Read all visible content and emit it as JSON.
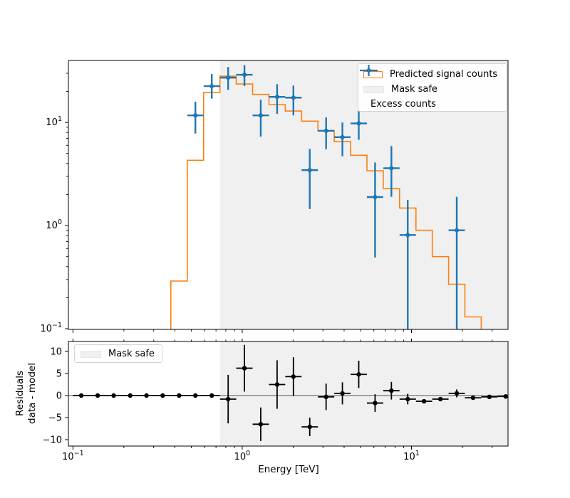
{
  "colors": {
    "model_line": "#ff7f0e",
    "excess_points": "#1f77b4",
    "mask_region": "#f0f0f0",
    "residual_points": "#000000",
    "zero_line": "#555555",
    "axis": "#000000",
    "background": "#ffffff"
  },
  "legends": {
    "top": {
      "position": "upper right",
      "items": [
        {
          "swatch": "model-outline",
          "label": "Predicted signal counts"
        },
        {
          "swatch": "mask-fill",
          "label": "Mask safe"
        },
        {
          "swatch": "excess-marker",
          "label": "Excess counts"
        }
      ]
    },
    "bottom": {
      "position": "upper left",
      "items": [
        {
          "swatch": "mask-fill",
          "label": "Mask safe"
        }
      ]
    }
  },
  "chart_data": [
    {
      "panel": "counts",
      "type": "line",
      "subtype": "step-histogram-with-errorbar-scatter",
      "title": "",
      "xlabel": "",
      "ylabel": "",
      "xscale": "log",
      "yscale": "log",
      "xlim": [
        0.094,
        37.2
      ],
      "ylim": [
        0.0985,
        39.9
      ],
      "grid": false,
      "mask_safe_min": 0.739,
      "x_ticks": [
        {
          "v": 0.1,
          "base": "10",
          "exp": "−1"
        },
        {
          "v": 1,
          "base": "10",
          "exp": "0"
        },
        {
          "v": 10,
          "base": "10",
          "exp": "1"
        }
      ],
      "y_ticks": [
        {
          "v": 0.1,
          "base": "10",
          "exp": "−1"
        },
        {
          "v": 1,
          "base": "10",
          "exp": "0"
        },
        {
          "v": 10,
          "base": "10",
          "exp": "1"
        }
      ],
      "bin_edges": [
        0.1,
        0.125,
        0.156,
        0.195,
        0.243,
        0.304,
        0.379,
        0.474,
        0.592,
        0.739,
        0.922,
        1.152,
        1.439,
        1.796,
        2.243,
        2.802,
        3.498,
        4.369,
        5.456,
        6.813,
        8.508,
        10.63,
        13.27,
        16.57,
        20.69,
        25.84,
        32.27,
        40.3
      ],
      "predicted_signal_counts": [
        null,
        null,
        null,
        null,
        null,
        null,
        0.29,
        4.3,
        19.6,
        28.1,
        23.6,
        18.7,
        14.9,
        12.9,
        10.3,
        8.3,
        6.5,
        4.8,
        3.4,
        2.28,
        1.48,
        0.9,
        0.5,
        0.27,
        0.13,
        null,
        null
      ],
      "excess_counts": {
        "x": [
          0.529,
          0.661,
          0.826,
          1.031,
          1.287,
          1.608,
          2.007,
          2.507,
          3.131,
          3.909,
          4.882,
          6.097,
          7.613,
          9.508,
          18.52
        ],
        "y": [
          11.7,
          22.5,
          27.2,
          29.0,
          11.7,
          17.7,
          17.4,
          3.45,
          8.3,
          7.2,
          9.8,
          1.89,
          3.6,
          0.81,
          0.9
        ],
        "yerr_lo": [
          3.9,
          5.5,
          6.5,
          6.5,
          4.4,
          5.6,
          5.7,
          2.0,
          2.8,
          2.5,
          3.0,
          1.4,
          1.7,
          0.78,
          0.88
        ],
        "yerr_hi": [
          4.2,
          7.0,
          7.3,
          7.0,
          4.9,
          5.8,
          5.4,
          2.1,
          2.9,
          2.8,
          3.3,
          2.2,
          2.3,
          0.96,
          1.0
        ],
        "x_lo": [
          0.474,
          0.592,
          0.739,
          0.922,
          1.152,
          1.439,
          1.796,
          2.243,
          2.802,
          3.498,
          4.369,
          5.456,
          6.813,
          8.508,
          16.57
        ],
        "x_hi": [
          0.592,
          0.739,
          0.922,
          1.152,
          1.439,
          1.796,
          2.243,
          2.802,
          3.498,
          4.369,
          5.456,
          6.813,
          8.508,
          10.63,
          20.69
        ]
      }
    },
    {
      "panel": "residuals",
      "type": "scatter",
      "title": "",
      "xlabel": "Energy [TeV]",
      "ylabel": "Residuals\ndata - model",
      "xscale": "log",
      "yscale": "linear",
      "xlim": [
        0.094,
        37.2
      ],
      "ylim": [
        -11.45,
        12.26
      ],
      "grid": false,
      "mask_safe_min": 0.739,
      "zero_line": 0,
      "y_ticks": [
        {
          "v": 10,
          "label": "10"
        },
        {
          "v": 5,
          "label": "5"
        },
        {
          "v": 0,
          "label": "0"
        },
        {
          "v": -5,
          "label": "−5"
        },
        {
          "v": -10,
          "label": "−10"
        }
      ],
      "points": {
        "x": [
          0.112,
          0.14,
          0.174,
          0.218,
          0.272,
          0.339,
          0.424,
          0.529,
          0.661,
          0.826,
          1.031,
          1.287,
          1.608,
          2.007,
          2.507,
          3.131,
          3.909,
          4.882,
          6.097,
          7.613,
          9.508,
          11.87,
          14.83,
          18.52,
          23.12,
          28.88,
          36.06
        ],
        "y": [
          0,
          0,
          0,
          0,
          0,
          0,
          0,
          0,
          0,
          -0.8,
          6.2,
          -6.5,
          2.5,
          4.3,
          -7.1,
          -0.3,
          0.5,
          4.8,
          -1.7,
          1.1,
          -0.8,
          -1.3,
          -0.8,
          0.5,
          -0.5,
          -0.3,
          -0.2
        ],
        "yerr": [
          0,
          0,
          0,
          0,
          0,
          0,
          0,
          0,
          0,
          5.5,
          5.3,
          3.8,
          5.5,
          4.4,
          2.1,
          3.0,
          2.5,
          3.1,
          2.0,
          2.0,
          1.2,
          0.4,
          0.4,
          0.9,
          0.3,
          0.3,
          0.3
        ],
        "x_lo": [
          0.1,
          0.125,
          0.156,
          0.195,
          0.243,
          0.304,
          0.379,
          0.474,
          0.592,
          0.739,
          0.922,
          1.152,
          1.439,
          1.796,
          2.243,
          2.802,
          3.498,
          4.369,
          5.456,
          6.813,
          8.508,
          10.63,
          13.27,
          16.57,
          20.69,
          25.84,
          32.27
        ],
        "x_hi": [
          0.125,
          0.156,
          0.195,
          0.243,
          0.304,
          0.379,
          0.474,
          0.592,
          0.739,
          0.922,
          1.152,
          1.439,
          1.796,
          2.243,
          2.802,
          3.498,
          4.369,
          5.456,
          6.813,
          8.508,
          10.63,
          13.27,
          16.57,
          20.69,
          25.84,
          32.27,
          40.3
        ]
      }
    }
  ]
}
